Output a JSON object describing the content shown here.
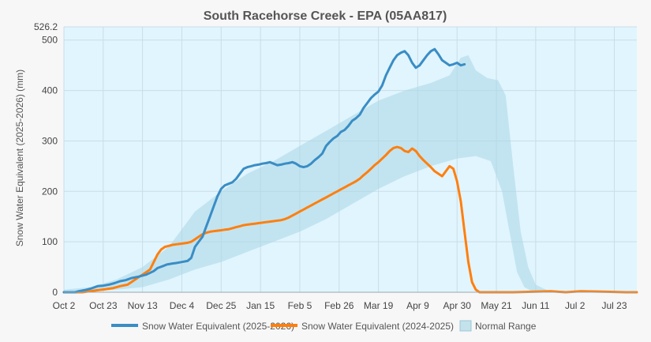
{
  "chart_data": {
    "type": "line",
    "title": "South Racehorse Creek - EPA (05AA817)",
    "xlabel": "",
    "ylabel": "Snow Water Equivalent (2025-2026) (mm)",
    "ylim": [
      0,
      526.2
    ],
    "xlim": [
      "Oct 2",
      "Aug 4"
    ],
    "y_ticks": [
      0,
      100,
      200,
      300,
      400,
      500
    ],
    "y_max_label": "526.2",
    "x_ticks": [
      {
        "day": 0,
        "label": "Oct 2"
      },
      {
        "day": 21,
        "label": "Oct 23"
      },
      {
        "day": 42,
        "label": "Nov 13"
      },
      {
        "day": 63,
        "label": "Dec 4"
      },
      {
        "day": 84,
        "label": "Dec 25"
      },
      {
        "day": 105,
        "label": "Jan 15"
      },
      {
        "day": 126,
        "label": "Feb 5"
      },
      {
        "day": 147,
        "label": "Feb 26"
      },
      {
        "day": 168,
        "label": "Mar 19"
      },
      {
        "day": 189,
        "label": "Apr 9"
      },
      {
        "day": 210,
        "label": "Apr 30"
      },
      {
        "day": 231,
        "label": "May 21"
      },
      {
        "day": 252,
        "label": "Jun 11"
      },
      {
        "day": 273,
        "label": "Jul 2"
      },
      {
        "day": 294,
        "label": "Jul 23"
      }
    ],
    "grid": true,
    "legend_position": "bottom",
    "series": [
      {
        "name": "Snow Water Equivalent (2025-2026)",
        "color": "#3a8dc5",
        "points": [
          [
            0,
            0
          ],
          [
            6,
            0
          ],
          [
            8,
            2
          ],
          [
            12,
            5
          ],
          [
            15,
            8
          ],
          [
            18,
            12
          ],
          [
            21,
            13
          ],
          [
            24,
            15
          ],
          [
            27,
            18
          ],
          [
            30,
            22
          ],
          [
            33,
            24
          ],
          [
            36,
            28
          ],
          [
            40,
            31
          ],
          [
            44,
            35
          ],
          [
            48,
            42
          ],
          [
            50,
            48
          ],
          [
            53,
            52
          ],
          [
            55,
            55
          ],
          [
            58,
            57
          ],
          [
            60,
            58
          ],
          [
            63,
            60
          ],
          [
            66,
            62
          ],
          [
            68,
            68
          ],
          [
            70,
            90
          ],
          [
            72,
            100
          ],
          [
            74,
            110
          ],
          [
            76,
            130
          ],
          [
            78,
            150
          ],
          [
            80,
            170
          ],
          [
            82,
            190
          ],
          [
            84,
            205
          ],
          [
            86,
            212
          ],
          [
            88,
            215
          ],
          [
            90,
            218
          ],
          [
            92,
            225
          ],
          [
            94,
            235
          ],
          [
            96,
            245
          ],
          [
            98,
            248
          ],
          [
            100,
            250
          ],
          [
            102,
            252
          ],
          [
            104,
            253
          ],
          [
            106,
            255
          ],
          [
            108,
            256
          ],
          [
            110,
            258
          ],
          [
            112,
            255
          ],
          [
            114,
            252
          ],
          [
            116,
            253
          ],
          [
            118,
            255
          ],
          [
            120,
            256
          ],
          [
            122,
            258
          ],
          [
            124,
            255
          ],
          [
            126,
            250
          ],
          [
            128,
            248
          ],
          [
            130,
            250
          ],
          [
            132,
            255
          ],
          [
            134,
            262
          ],
          [
            136,
            268
          ],
          [
            138,
            275
          ],
          [
            140,
            290
          ],
          [
            142,
            298
          ],
          [
            144,
            305
          ],
          [
            146,
            310
          ],
          [
            148,
            318
          ],
          [
            150,
            322
          ],
          [
            152,
            330
          ],
          [
            154,
            340
          ],
          [
            156,
            345
          ],
          [
            158,
            352
          ],
          [
            160,
            365
          ],
          [
            162,
            375
          ],
          [
            164,
            385
          ],
          [
            166,
            392
          ],
          [
            168,
            398
          ],
          [
            170,
            410
          ],
          [
            172,
            430
          ],
          [
            174,
            445
          ],
          [
            176,
            460
          ],
          [
            178,
            470
          ],
          [
            180,
            475
          ],
          [
            182,
            478
          ],
          [
            184,
            470
          ],
          [
            186,
            455
          ],
          [
            188,
            445
          ],
          [
            190,
            450
          ],
          [
            192,
            460
          ],
          [
            194,
            470
          ],
          [
            196,
            478
          ],
          [
            198,
            482
          ],
          [
            200,
            472
          ],
          [
            202,
            460
          ],
          [
            204,
            455
          ],
          [
            206,
            450
          ],
          [
            208,
            452
          ],
          [
            210,
            455
          ],
          [
            212,
            450
          ],
          [
            214,
            452
          ]
        ]
      },
      {
        "name": "Snow Water Equivalent (2024-2025)",
        "color": "#ff7f0e",
        "points": [
          [
            0,
            0
          ],
          [
            10,
            0
          ],
          [
            14,
            2
          ],
          [
            18,
            4
          ],
          [
            22,
            6
          ],
          [
            26,
            8
          ],
          [
            30,
            12
          ],
          [
            34,
            15
          ],
          [
            36,
            20
          ],
          [
            38,
            25
          ],
          [
            40,
            30
          ],
          [
            42,
            35
          ],
          [
            44,
            40
          ],
          [
            46,
            45
          ],
          [
            48,
            60
          ],
          [
            50,
            75
          ],
          [
            52,
            85
          ],
          [
            54,
            90
          ],
          [
            56,
            92
          ],
          [
            58,
            94
          ],
          [
            60,
            95
          ],
          [
            62,
            96
          ],
          [
            64,
            97
          ],
          [
            66,
            98
          ],
          [
            68,
            100
          ],
          [
            70,
            105
          ],
          [
            72,
            110
          ],
          [
            74,
            115
          ],
          [
            76,
            118
          ],
          [
            78,
            120
          ],
          [
            80,
            121
          ],
          [
            82,
            122
          ],
          [
            84,
            123
          ],
          [
            86,
            124
          ],
          [
            88,
            125
          ],
          [
            90,
            127
          ],
          [
            92,
            129
          ],
          [
            94,
            131
          ],
          [
            96,
            133
          ],
          [
            98,
            134
          ],
          [
            100,
            135
          ],
          [
            102,
            136
          ],
          [
            104,
            137
          ],
          [
            106,
            138
          ],
          [
            108,
            139
          ],
          [
            110,
            140
          ],
          [
            112,
            141
          ],
          [
            114,
            142
          ],
          [
            116,
            143
          ],
          [
            118,
            145
          ],
          [
            120,
            148
          ],
          [
            122,
            152
          ],
          [
            124,
            156
          ],
          [
            126,
            160
          ],
          [
            128,
            164
          ],
          [
            130,
            168
          ],
          [
            132,
            172
          ],
          [
            134,
            176
          ],
          [
            136,
            180
          ],
          [
            138,
            184
          ],
          [
            140,
            188
          ],
          [
            142,
            192
          ],
          [
            144,
            196
          ],
          [
            146,
            200
          ],
          [
            148,
            204
          ],
          [
            150,
            208
          ],
          [
            152,
            212
          ],
          [
            154,
            216
          ],
          [
            156,
            220
          ],
          [
            158,
            225
          ],
          [
            160,
            232
          ],
          [
            162,
            238
          ],
          [
            164,
            245
          ],
          [
            166,
            252
          ],
          [
            168,
            258
          ],
          [
            170,
            265
          ],
          [
            172,
            272
          ],
          [
            174,
            280
          ],
          [
            176,
            286
          ],
          [
            178,
            288
          ],
          [
            180,
            286
          ],
          [
            182,
            280
          ],
          [
            184,
            278
          ],
          [
            186,
            285
          ],
          [
            188,
            280
          ],
          [
            190,
            270
          ],
          [
            192,
            262
          ],
          [
            194,
            255
          ],
          [
            196,
            248
          ],
          [
            198,
            240
          ],
          [
            200,
            235
          ],
          [
            202,
            230
          ],
          [
            204,
            240
          ],
          [
            206,
            250
          ],
          [
            208,
            245
          ],
          [
            210,
            220
          ],
          [
            212,
            180
          ],
          [
            214,
            120
          ],
          [
            216,
            60
          ],
          [
            218,
            20
          ],
          [
            220,
            5
          ],
          [
            222,
            0
          ],
          [
            240,
            0
          ],
          [
            250,
            1
          ],
          [
            260,
            2
          ],
          [
            268,
            0
          ],
          [
            276,
            2
          ],
          [
            290,
            1
          ],
          [
            300,
            0
          ],
          [
            306,
            0
          ]
        ]
      }
    ],
    "normal_range": {
      "name": "Normal Range",
      "color": "#add8e6",
      "lower": [
        [
          0,
          0
        ],
        [
          14,
          2
        ],
        [
          28,
          5
        ],
        [
          42,
          10
        ],
        [
          56,
          25
        ],
        [
          70,
          45
        ],
        [
          84,
          60
        ],
        [
          98,
          80
        ],
        [
          112,
          100
        ],
        [
          126,
          120
        ],
        [
          140,
          145
        ],
        [
          154,
          175
        ],
        [
          168,
          205
        ],
        [
          182,
          230
        ],
        [
          196,
          250
        ],
        [
          210,
          265
        ],
        [
          220,
          270
        ],
        [
          228,
          260
        ],
        [
          234,
          200
        ],
        [
          238,
          120
        ],
        [
          242,
          40
        ],
        [
          246,
          10
        ],
        [
          250,
          2
        ],
        [
          260,
          0
        ],
        [
          306,
          0
        ]
      ],
      "upper": [
        [
          0,
          5
        ],
        [
          14,
          10
        ],
        [
          28,
          25
        ],
        [
          42,
          50
        ],
        [
          56,
          90
        ],
        [
          70,
          160
        ],
        [
          84,
          200
        ],
        [
          98,
          235
        ],
        [
          112,
          260
        ],
        [
          126,
          290
        ],
        [
          140,
          320
        ],
        [
          154,
          350
        ],
        [
          168,
          380
        ],
        [
          182,
          400
        ],
        [
          196,
          415
        ],
        [
          206,
          430
        ],
        [
          212,
          465
        ],
        [
          216,
          470
        ],
        [
          220,
          440
        ],
        [
          226,
          425
        ],
        [
          232,
          420
        ],
        [
          236,
          390
        ],
        [
          240,
          250
        ],
        [
          244,
          120
        ],
        [
          248,
          50
        ],
        [
          252,
          15
        ],
        [
          258,
          4
        ],
        [
          270,
          2
        ],
        [
          306,
          1
        ]
      ]
    }
  }
}
